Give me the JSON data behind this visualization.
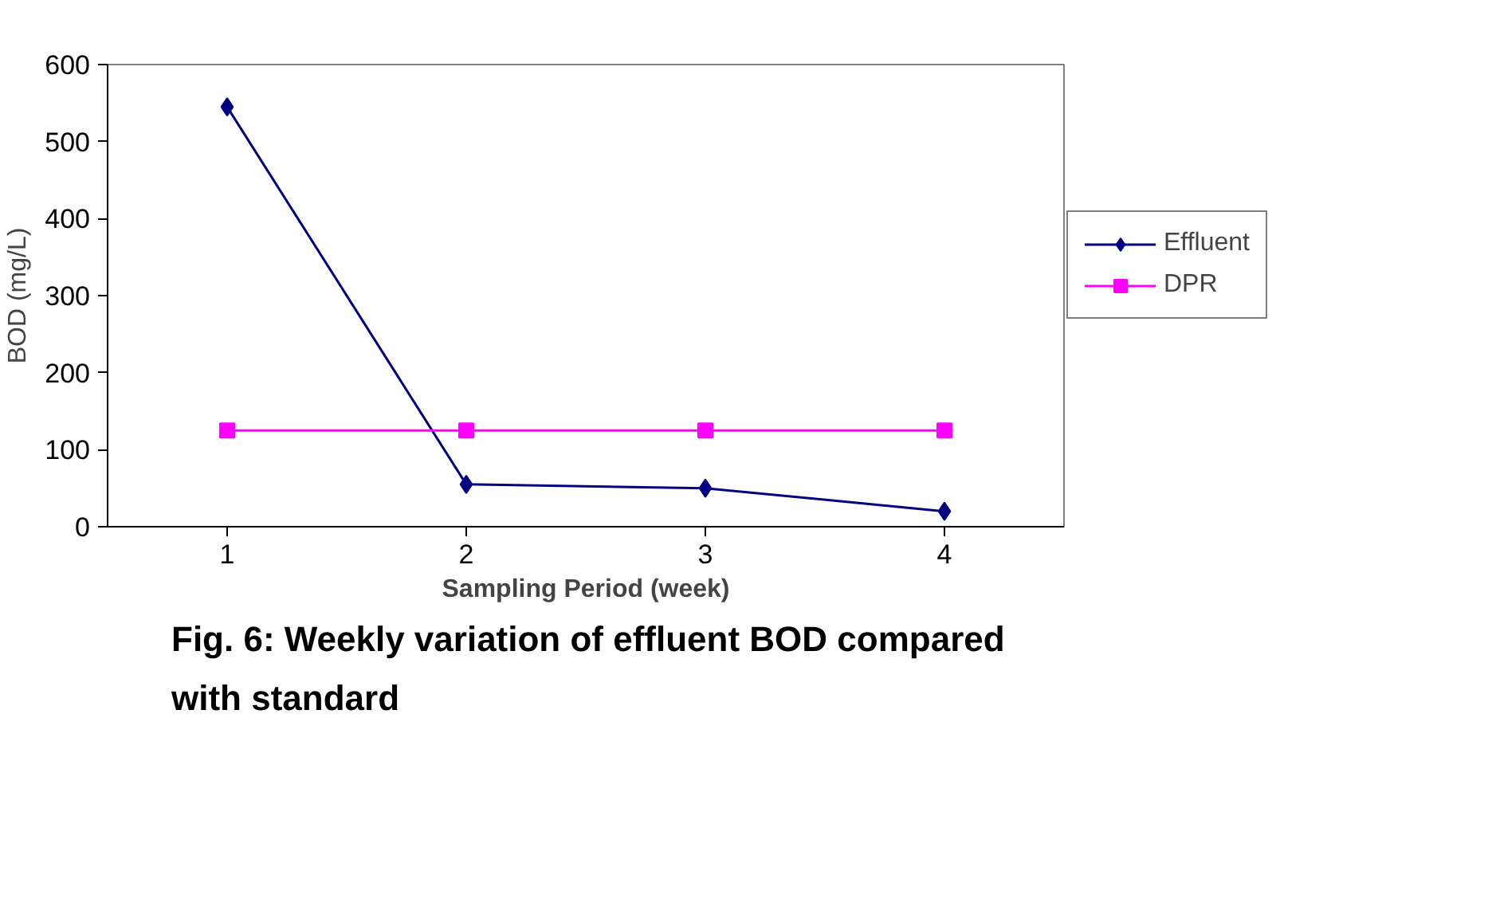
{
  "chart_data": {
    "type": "line",
    "title": "Fig. 6: Weekly variation of effluent BOD compared with standard",
    "xlabel": "Sampling Period (week)",
    "ylabel": "BOD (mg/L)",
    "categories": [
      "1",
      "2",
      "3",
      "4"
    ],
    "series": [
      {
        "name": "Effluent",
        "color": "#000080",
        "marker": "diamond",
        "values": [
          545,
          55,
          50,
          20
        ]
      },
      {
        "name": "DPR",
        "color": "#ff00ff",
        "marker": "square",
        "values": [
          125,
          125,
          125,
          125
        ]
      }
    ],
    "ylim": [
      0,
      600
    ],
    "yticks": [
      0,
      100,
      200,
      300,
      400,
      500,
      600
    ],
    "grid": false,
    "legend": "right",
    "line_style": "solid"
  }
}
